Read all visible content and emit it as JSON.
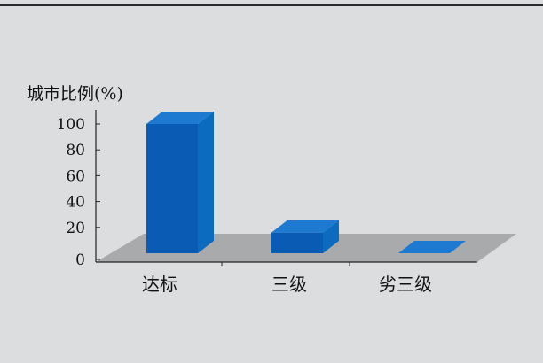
{
  "chart_data": {
    "type": "bar",
    "title": "",
    "xlabel": "",
    "ylabel": "城市比例(%)",
    "categories": [
      "达标",
      "三级",
      "劣三级"
    ],
    "values": [
      100,
      16,
      0
    ],
    "yticks": [
      0,
      20,
      40,
      60,
      80,
      100
    ],
    "ylim": [
      0,
      100
    ],
    "grid": false,
    "legend": "none",
    "colors": {
      "bar_front": "#0a5bb3",
      "bar_top": "#1d7ad0",
      "bar_side": "#0b6bbf",
      "floor": "#a9aaac",
      "background": "#dcdddf"
    }
  }
}
